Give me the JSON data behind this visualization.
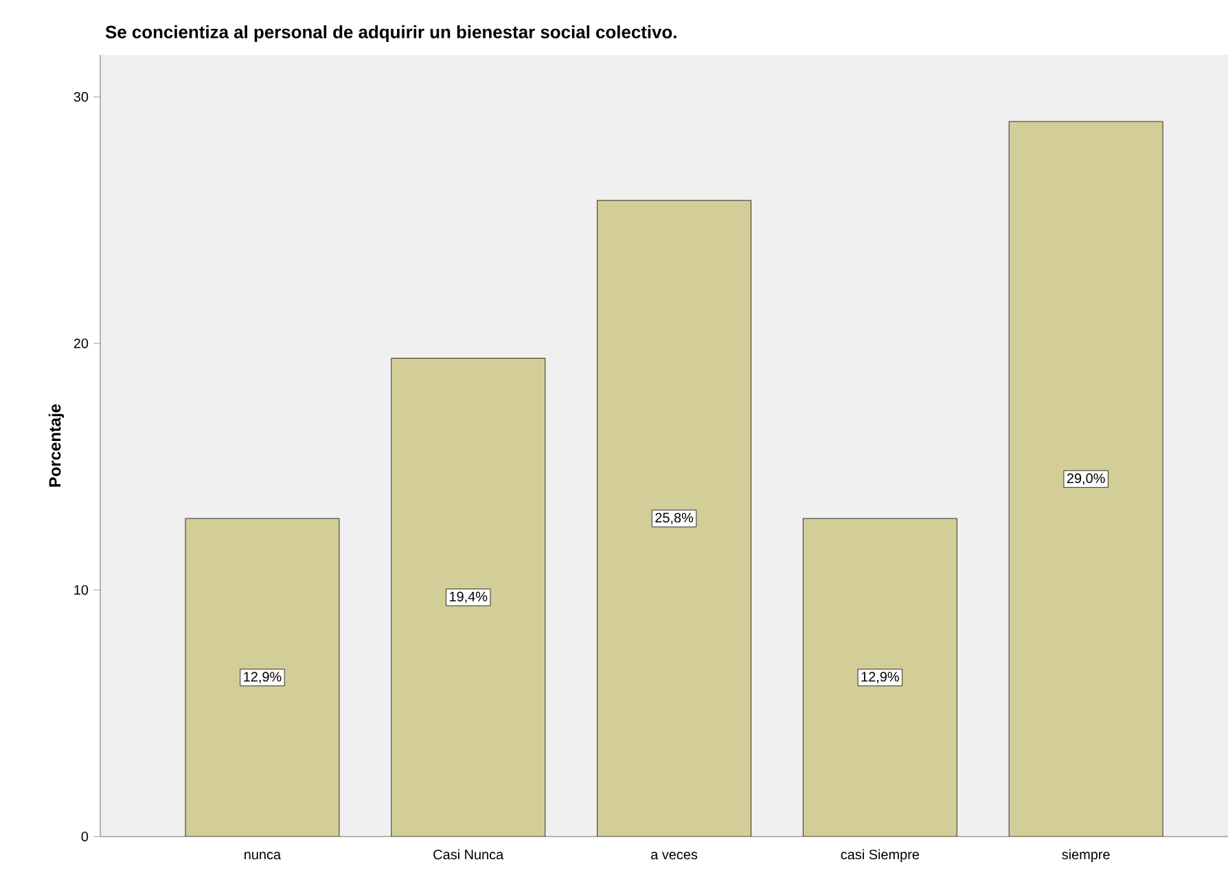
{
  "chart_data": {
    "type": "bar",
    "title": "Se concientiza al personal de adquirir un bienestar social colectivo.",
    "ylabel": "Porcentaje",
    "categories": [
      "nunca",
      "Casi Nunca",
      "a  veces",
      "casi Siempre",
      "siempre"
    ],
    "values": [
      12.9,
      19.4,
      25.8,
      12.9,
      29.0
    ],
    "value_labels": [
      "12,9%",
      "19,4%",
      "25,8%",
      "12,9%",
      "29,0%"
    ],
    "color": "#d3ce97",
    "ylim": [
      0,
      31.7
    ],
    "yticks": [
      0,
      10,
      20,
      30
    ]
  }
}
